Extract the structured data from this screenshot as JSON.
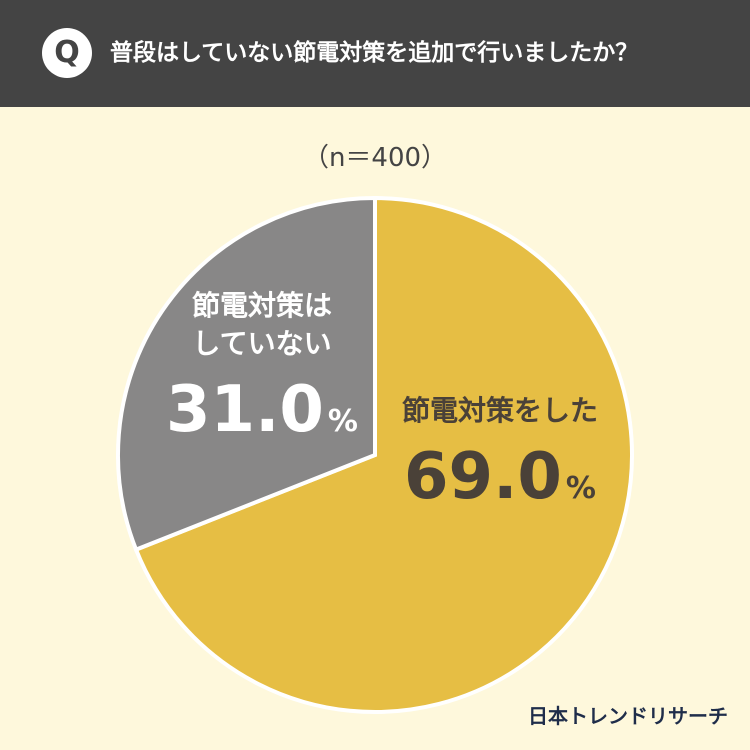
{
  "header": {
    "badge": "Q",
    "question": "普段はしていない節電対策を追加で行いましたか？",
    "colors": {
      "background": "#444444",
      "text": "#ffffff"
    }
  },
  "sample_size": "（n＝400）",
  "brand": "日本トレンドリサーチ",
  "chart_data": {
    "type": "pie",
    "title": "普段はしていない節電対策を追加で行いましたか？",
    "subtitle": "（n＝400）",
    "categories": [
      "節電対策をした",
      "節電対策はしていない"
    ],
    "values": [
      69.0,
      31.0
    ],
    "unit": "%",
    "colors": [
      "#e6be44",
      "#888787"
    ],
    "label_colors": [
      "#4a4138",
      "#ffffff"
    ],
    "label_lines": [
      [
        "節電対策をした"
      ],
      [
        "節電対策は",
        "していない"
      ]
    ],
    "value_labels": [
      "69.0",
      "31.0"
    ]
  }
}
